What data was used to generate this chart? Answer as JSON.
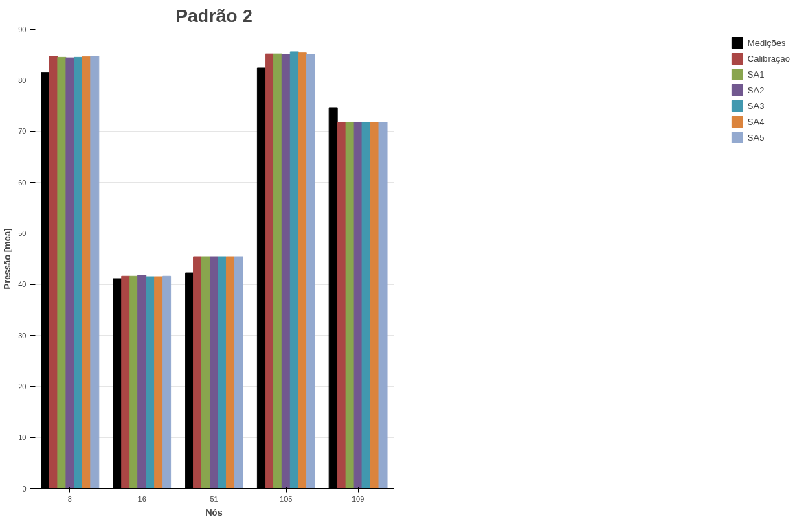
{
  "chart_data": {
    "type": "bar",
    "title": "Padrão 2",
    "xlabel": "Nós",
    "ylabel": "Pressão [mca]",
    "categories": [
      "8",
      "16",
      "51",
      "105",
      "109"
    ],
    "series": [
      {
        "name": "Medições",
        "color": "#000000",
        "values": [
          81.5,
          41.1,
          42.3,
          82.4,
          74.6
        ]
      },
      {
        "name": "Calibração",
        "color": "#aa4644",
        "values": [
          84.7,
          41.6,
          45.4,
          85.2,
          71.8
        ]
      },
      {
        "name": "SA1",
        "color": "#89a54e",
        "values": [
          84.5,
          41.6,
          45.4,
          85.2,
          71.8
        ]
      },
      {
        "name": "SA2",
        "color": "#71588f",
        "values": [
          84.4,
          41.8,
          45.4,
          85.1,
          71.8
        ]
      },
      {
        "name": "SA3",
        "color": "#4198af",
        "values": [
          84.5,
          41.5,
          45.4,
          85.5,
          71.8
        ]
      },
      {
        "name": "SA4",
        "color": "#db843d",
        "values": [
          84.6,
          41.5,
          45.4,
          85.4,
          71.8
        ]
      },
      {
        "name": "SA5",
        "color": "#93a9cf",
        "values": [
          84.7,
          41.6,
          45.4,
          85.1,
          71.8
        ]
      }
    ],
    "ylim": [
      0,
      90
    ],
    "yticks": [
      0,
      10,
      20,
      30,
      40,
      50,
      60,
      70,
      80,
      90
    ],
    "grid": "y",
    "legend": "right"
  }
}
